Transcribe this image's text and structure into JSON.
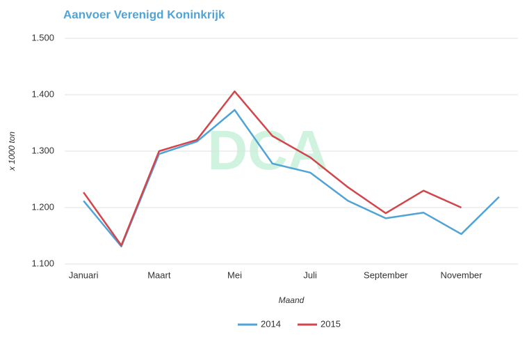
{
  "chart_data": {
    "type": "line",
    "title": "Aanvoer Verenigd Koninkrijk",
    "watermark": "DCA",
    "y_label": "x 1000 ton",
    "x_label": "Maand",
    "categories": [
      "Januari",
      null,
      "Maart",
      null,
      "Mei",
      null,
      "Juli",
      null,
      "September",
      null,
      "November",
      null
    ],
    "series": [
      {
        "name": "2014",
        "color": "#4fa3d6",
        "values": [
          1212,
          1131,
          1295,
          1317,
          1373,
          1278,
          1262,
          1212,
          1181,
          1191,
          1153,
          1219
        ]
      },
      {
        "name": "2015",
        "color": "#d2454b",
        "values": [
          1227,
          1133,
          1300,
          1320,
          1406,
          1327,
          1289,
          1236,
          1190,
          1230,
          1200,
          null
        ]
      }
    ],
    "ylim": [
      1100,
      1500
    ],
    "yticks": [
      {
        "value": 1100,
        "label": "1.100"
      },
      {
        "value": 1200,
        "label": "1.200"
      },
      {
        "value": 1300,
        "label": "1.300"
      },
      {
        "value": 1400,
        "label": "1.400"
      },
      {
        "value": 1500,
        "label": "1.500"
      }
    ],
    "grid": true,
    "legend": "bottom"
  }
}
